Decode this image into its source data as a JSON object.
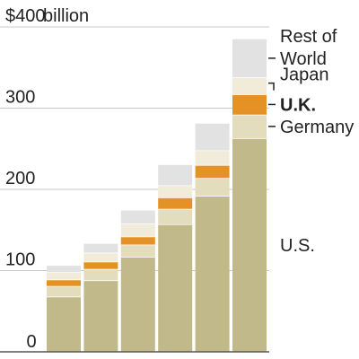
{
  "chart_data": {
    "type": "bar",
    "stacked": true,
    "title": "",
    "xlabel": "",
    "ylabel": "",
    "ylim": [
      0,
      400
    ],
    "y_ticks": [
      {
        "value": 0,
        "label": "0"
      },
      {
        "value": 100,
        "label": "100"
      },
      {
        "value": 200,
        "label": "200"
      },
      {
        "value": 300,
        "label": "300"
      },
      {
        "value": 400,
        "label": "$400",
        "unit": "billion"
      }
    ],
    "grid": true,
    "categories": [
      "",
      "",
      "",
      "",
      "",
      ""
    ],
    "series": [
      {
        "name": "U.S.",
        "color": "#c1b98a",
        "values": [
          68,
          88,
          117,
          157,
          192,
          263
        ]
      },
      {
        "name": "Germany",
        "color": "#e3dcbd",
        "values": [
          13,
          14,
          15,
          19,
          22,
          29
        ]
      },
      {
        "name": "U.K.",
        "color": "#e49226",
        "values": [
          8,
          9,
          10,
          14,
          16,
          25
        ]
      },
      {
        "name": "Japan",
        "color": "#f1ecda",
        "values": [
          9,
          11,
          16,
          15,
          18,
          21
        ]
      },
      {
        "name": "Rest of World",
        "color": "#e2e2e2",
        "values": [
          8,
          11,
          16,
          25,
          33,
          47
        ]
      }
    ],
    "legend": [
      {
        "text": "Rest of",
        "text2": "World",
        "series": "Rest of World",
        "bold": false,
        "leader": "dash"
      },
      {
        "text": "Japan",
        "series": "Japan",
        "bold": false,
        "leader": "bracket"
      },
      {
        "text": "U.K.",
        "series": "U.K.",
        "bold": true,
        "leader": "dash"
      },
      {
        "text": "Germany",
        "series": "Germany",
        "bold": false,
        "leader": "dash"
      },
      {
        "text": "U.S.",
        "series": "U.S.",
        "bold": false,
        "leader": "none"
      }
    ],
    "legend_position": "right"
  }
}
